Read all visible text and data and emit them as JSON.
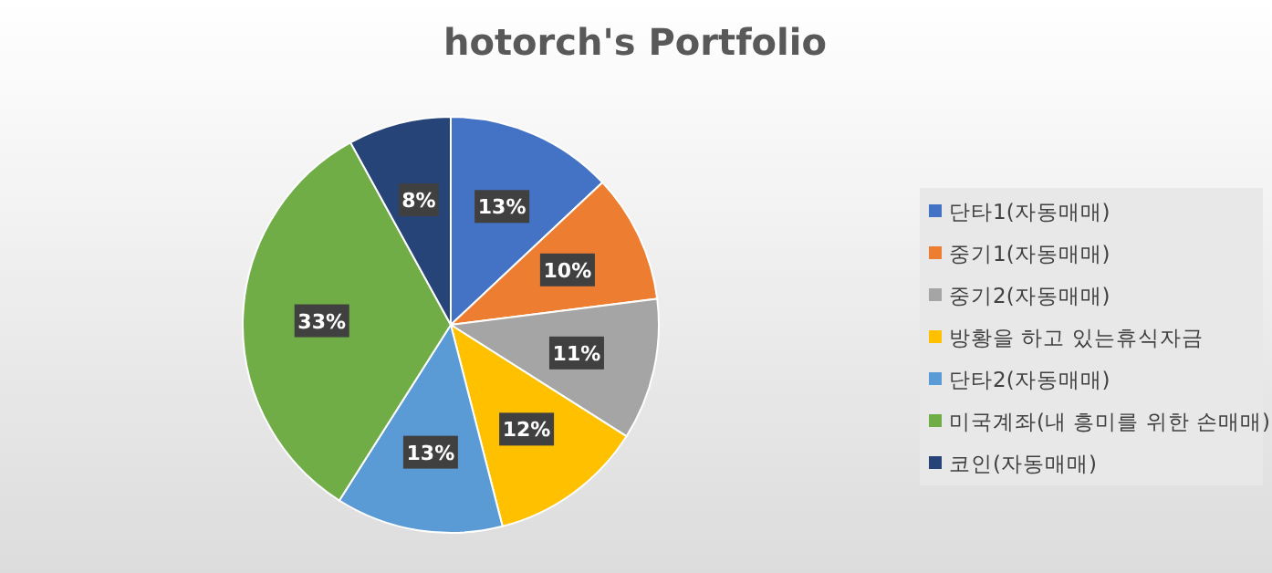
{
  "chart_data": {
    "type": "pie",
    "title": "hotorch's Portfolio",
    "categories": [
      "단타1(자동매매)",
      "중기1(자동매매)",
      "중기2(자동매매)",
      "방황을 하고 있는휴식자금",
      "단타2(자동매매)",
      "미국계좌(내 흥미를 위한 손매매)",
      "코인(자동매매)"
    ],
    "values": [
      13,
      10,
      11,
      12,
      13,
      33,
      8
    ],
    "value_labels": [
      "13%",
      "10%",
      "11%",
      "12%",
      "13%",
      "33%",
      "8%"
    ],
    "colors": [
      "#4472c4",
      "#ed7d31",
      "#a5a5a5",
      "#ffc000",
      "#5b9bd5",
      "#70ad47",
      "#264478"
    ],
    "legend": "right"
  }
}
